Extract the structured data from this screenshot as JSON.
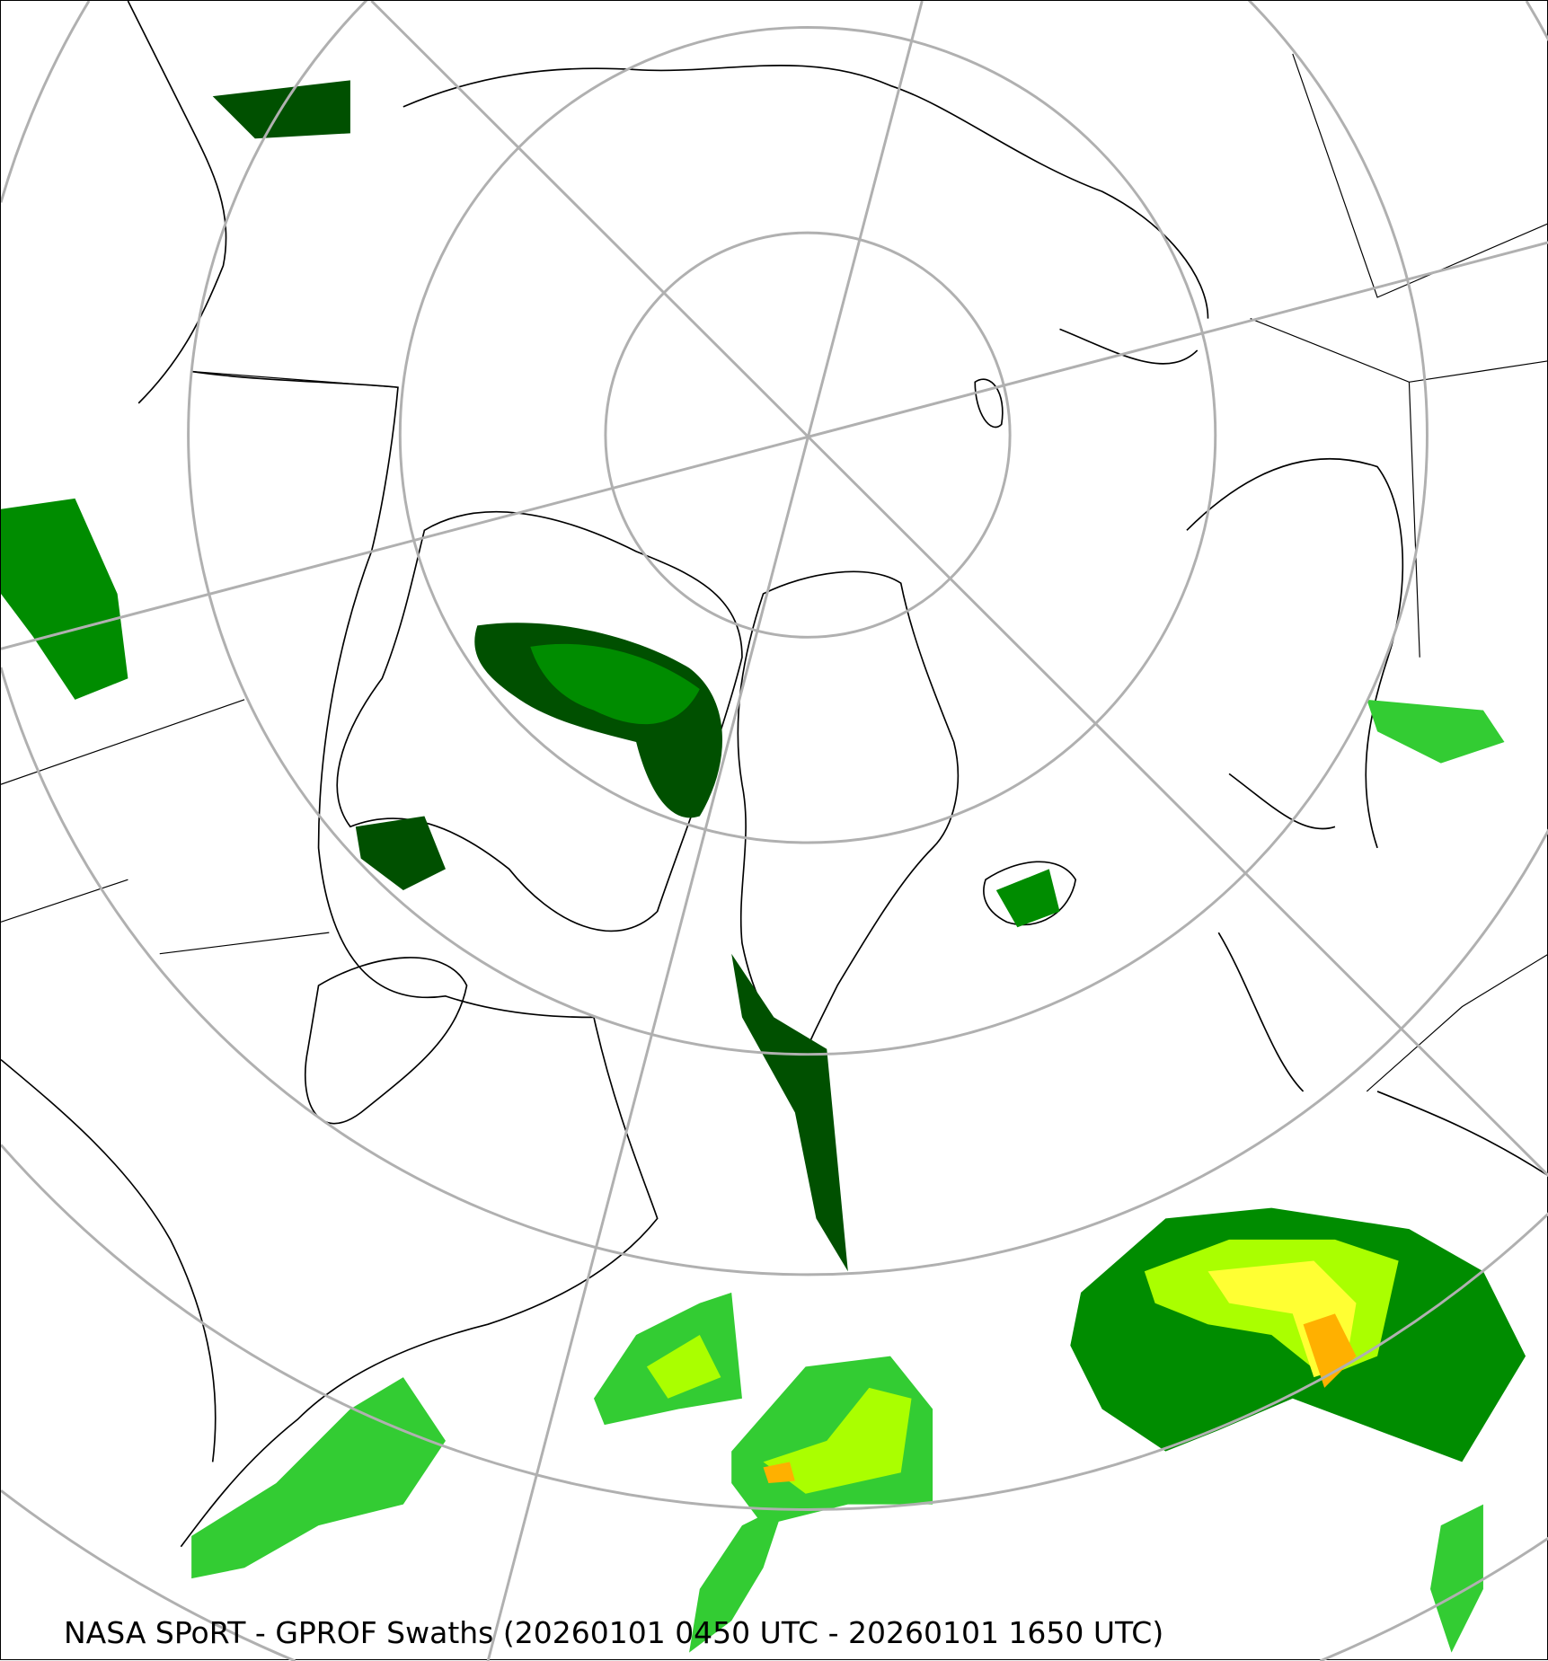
{
  "caption": "NASA SPoRT - GPROF Swaths (20260101 0450 UTC - 20260101 1650 UTC)",
  "map": {
    "projection": "north polar stereographic",
    "graticule_color": "#b0b0b0",
    "coastline_color": "#000000",
    "precip_colors": [
      "#005000",
      "#008c00",
      "#33cc33",
      "#aaff00",
      "#ffff33",
      "#ffb000",
      "#ff5500"
    ]
  }
}
